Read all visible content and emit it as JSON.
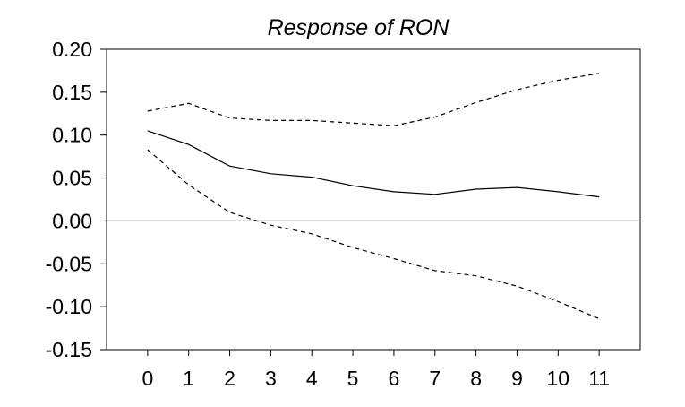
{
  "chart_data": {
    "type": "line",
    "title": "Response of RON",
    "xlabel": "",
    "ylabel": "",
    "x": [
      0,
      1,
      2,
      3,
      4,
      5,
      6,
      7,
      8,
      9,
      10,
      11
    ],
    "x_tick_labels": [
      "0",
      "1",
      "2",
      "3",
      "4",
      "5",
      "6",
      "7",
      "8",
      "9",
      "10",
      "11"
    ],
    "y_tick_labels": [
      "0.20",
      "0.15",
      "0.10",
      "0.05",
      "0.00",
      "-0.05",
      "-0.10",
      "-0.15"
    ],
    "ylim": [
      -0.15,
      0.2
    ],
    "xlim": [
      -1,
      12
    ],
    "grid": false,
    "zero_line": true,
    "series": [
      {
        "line_style": "solid",
        "values": [
          0.105,
          0.089,
          0.064,
          0.055,
          0.051,
          0.041,
          0.034,
          0.031,
          0.037,
          0.039,
          0.034,
          0.028
        ]
      },
      {
        "line_style": "dashed",
        "values": [
          0.128,
          0.137,
          0.12,
          0.117,
          0.117,
          0.114,
          0.111,
          0.121,
          0.138,
          0.153,
          0.164,
          0.172
        ]
      },
      {
        "line_style": "dashed",
        "values": [
          0.083,
          0.042,
          0.01,
          -0.005,
          -0.015,
          -0.031,
          -0.044,
          -0.058,
          -0.064,
          -0.076,
          -0.094,
          -0.114
        ]
      }
    ],
    "colors": {
      "lines": "#000000",
      "axes": "#000000",
      "background": "#ffffff"
    }
  }
}
